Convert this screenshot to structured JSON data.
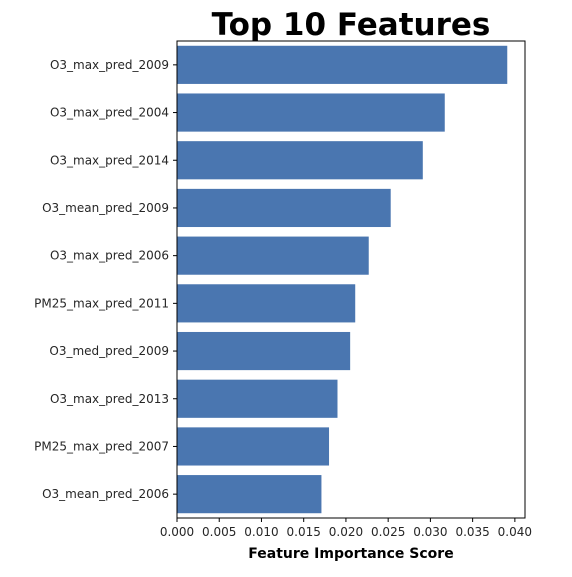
{
  "chart_data": {
    "type": "bar",
    "orientation": "horizontal",
    "title": "Top 10 Features",
    "xlabel": "Feature Importance Score",
    "ylabel": "",
    "categories": [
      "O3_max_pred_2009",
      "O3_max_pred_2004",
      "O3_max_pred_2014",
      "O3_mean_pred_2009",
      "O3_max_pred_2006",
      "PM25_max_pred_2011",
      "O3_med_pred_2009",
      "O3_max_pred_2013",
      "PM25_max_pred_2007",
      "O3_mean_pred_2006"
    ],
    "values": [
      0.0391,
      0.0317,
      0.0291,
      0.0253,
      0.0227,
      0.0211,
      0.0205,
      0.019,
      0.018,
      0.0171
    ],
    "xlim": [
      0,
      0.0412
    ],
    "xticks": [
      0.0,
      0.005,
      0.01,
      0.015,
      0.02,
      0.025,
      0.03,
      0.035,
      0.04
    ],
    "xtick_labels": [
      "0.000",
      "0.005",
      "0.010",
      "0.015",
      "0.020",
      "0.025",
      "0.030",
      "0.035",
      "0.040"
    ],
    "grid": false,
    "bar_color": "#4a76b0"
  }
}
